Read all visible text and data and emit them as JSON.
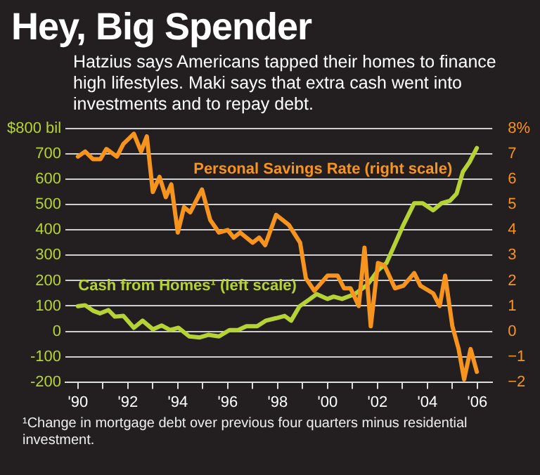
{
  "chart_data": {
    "type": "line",
    "title": "Hey, Big Spender",
    "subtitle": "Hatzius says Americans tapped their homes to finance high lifestyles. Maki says that extra cash went into investments and to repay debt.",
    "annotations": [
      "¹Change in mortgage debt over previous four quarters minus residential investment."
    ],
    "xlim": [
      1989.5,
      2006.6
    ],
    "xticks": [
      {
        "value": 1990,
        "label": "'90"
      },
      {
        "value": 1991,
        "label": null
      },
      {
        "value": 1992,
        "label": "'92"
      },
      {
        "value": 1993,
        "label": null
      },
      {
        "value": 1994,
        "label": "'94"
      },
      {
        "value": 1995,
        "label": null
      },
      {
        "value": 1996,
        "label": "'96"
      },
      {
        "value": 1997,
        "label": null
      },
      {
        "value": 1998,
        "label": "'98"
      },
      {
        "value": 1999,
        "label": null
      },
      {
        "value": 2000,
        "label": "'00"
      },
      {
        "value": 2001,
        "label": null
      },
      {
        "value": 2002,
        "label": "'02"
      },
      {
        "value": 2003,
        "label": null
      },
      {
        "value": 2004,
        "label": "'04"
      },
      {
        "value": 2005,
        "label": null
      },
      {
        "value": 2006,
        "label": "'06"
      }
    ],
    "ylim": [
      -200,
      800
    ],
    "yticks": [
      -200,
      -100,
      0,
      100,
      200,
      300,
      400,
      500,
      600,
      700,
      {
        "value": 800,
        "label": "$800 bil"
      }
    ],
    "y2lim": [
      -2,
      8
    ],
    "y2ticks": [
      {
        "value": -2,
        "label": "−2"
      },
      {
        "value": -1,
        "label": "−1"
      },
      0,
      1,
      2,
      3,
      4,
      5,
      6,
      7,
      {
        "value": 8,
        "label": "8%"
      }
    ],
    "grid": "y",
    "marker": "none",
    "line_style": "solid",
    "series": [
      {
        "name": "Personal Savings Rate (right scale)",
        "color": "#f7941d",
        "axis": "y2",
        "x": [
          1990.0,
          1990.29,
          1990.6,
          1990.9,
          1991.14,
          1991.56,
          1991.82,
          1992.24,
          1992.53,
          1992.76,
          1993.0,
          1993.27,
          1993.52,
          1993.74,
          1994.0,
          1994.25,
          1994.5,
          1994.97,
          1995.3,
          1995.65,
          1996.0,
          1996.24,
          1996.5,
          1997.0,
          1997.26,
          1997.5,
          1997.94,
          1998.45,
          1998.9,
          1999.13,
          1999.47,
          2000.0,
          2000.4,
          2000.66,
          2000.92,
          2001.25,
          2001.48,
          2001.73,
          2002.02,
          2002.28,
          2002.7,
          2003.04,
          2003.47,
          2003.72,
          2004.23,
          2004.49,
          2004.71,
          2005.0,
          2005.25,
          2005.47,
          2005.73,
          2005.98
        ],
        "values": [
          6.9,
          7.1,
          6.8,
          6.8,
          7.2,
          6.9,
          7.4,
          7.8,
          7.1,
          7.7,
          5.5,
          6.1,
          5.3,
          5.8,
          3.9,
          4.9,
          4.7,
          5.6,
          4.4,
          3.9,
          4.0,
          3.7,
          3.9,
          3.5,
          3.7,
          3.4,
          4.6,
          4.2,
          3.5,
          2.1,
          1.6,
          2.2,
          2.2,
          1.7,
          1.7,
          1.0,
          3.3,
          0.2,
          2.7,
          2.6,
          1.7,
          1.8,
          2.3,
          1.8,
          1.5,
          1.0,
          2.2,
          0.2,
          -0.7,
          -1.9,
          -0.7,
          -1.6
        ]
      },
      {
        "name": "Cash from Homes¹ (left scale)",
        "color": "#b5d334",
        "x": [
          1990.0,
          1990.29,
          1990.63,
          1990.88,
          1991.22,
          1991.48,
          1991.82,
          1992.24,
          1992.59,
          1993.0,
          1993.35,
          1993.69,
          1994.03,
          1994.46,
          1994.88,
          1995.22,
          1995.65,
          1996.07,
          1996.41,
          1996.75,
          1997.18,
          1997.52,
          1997.94,
          1998.28,
          1998.54,
          1998.88,
          1999.3,
          1999.56,
          2000.0,
          2000.24,
          2000.58,
          2001.09,
          2001.6,
          2002.02,
          2002.36,
          2002.7,
          2003.04,
          2003.47,
          2003.81,
          2004.23,
          2004.57,
          2004.91,
          2005.17,
          2005.42,
          2005.68,
          2005.98
        ],
        "values": [
          99,
          103,
          80,
          71,
          84,
          58,
          61,
          14,
          42,
          8,
          23,
          5,
          14,
          -20,
          -24,
          -14,
          -20,
          5,
          5,
          20,
          20,
          42,
          52,
          61,
          42,
          99,
          128,
          147,
          128,
          137,
          128,
          147,
          184,
          241,
          270,
          345,
          421,
          506,
          506,
          478,
          506,
          516,
          544,
          630,
          667,
          724
        ]
      }
    ]
  }
}
